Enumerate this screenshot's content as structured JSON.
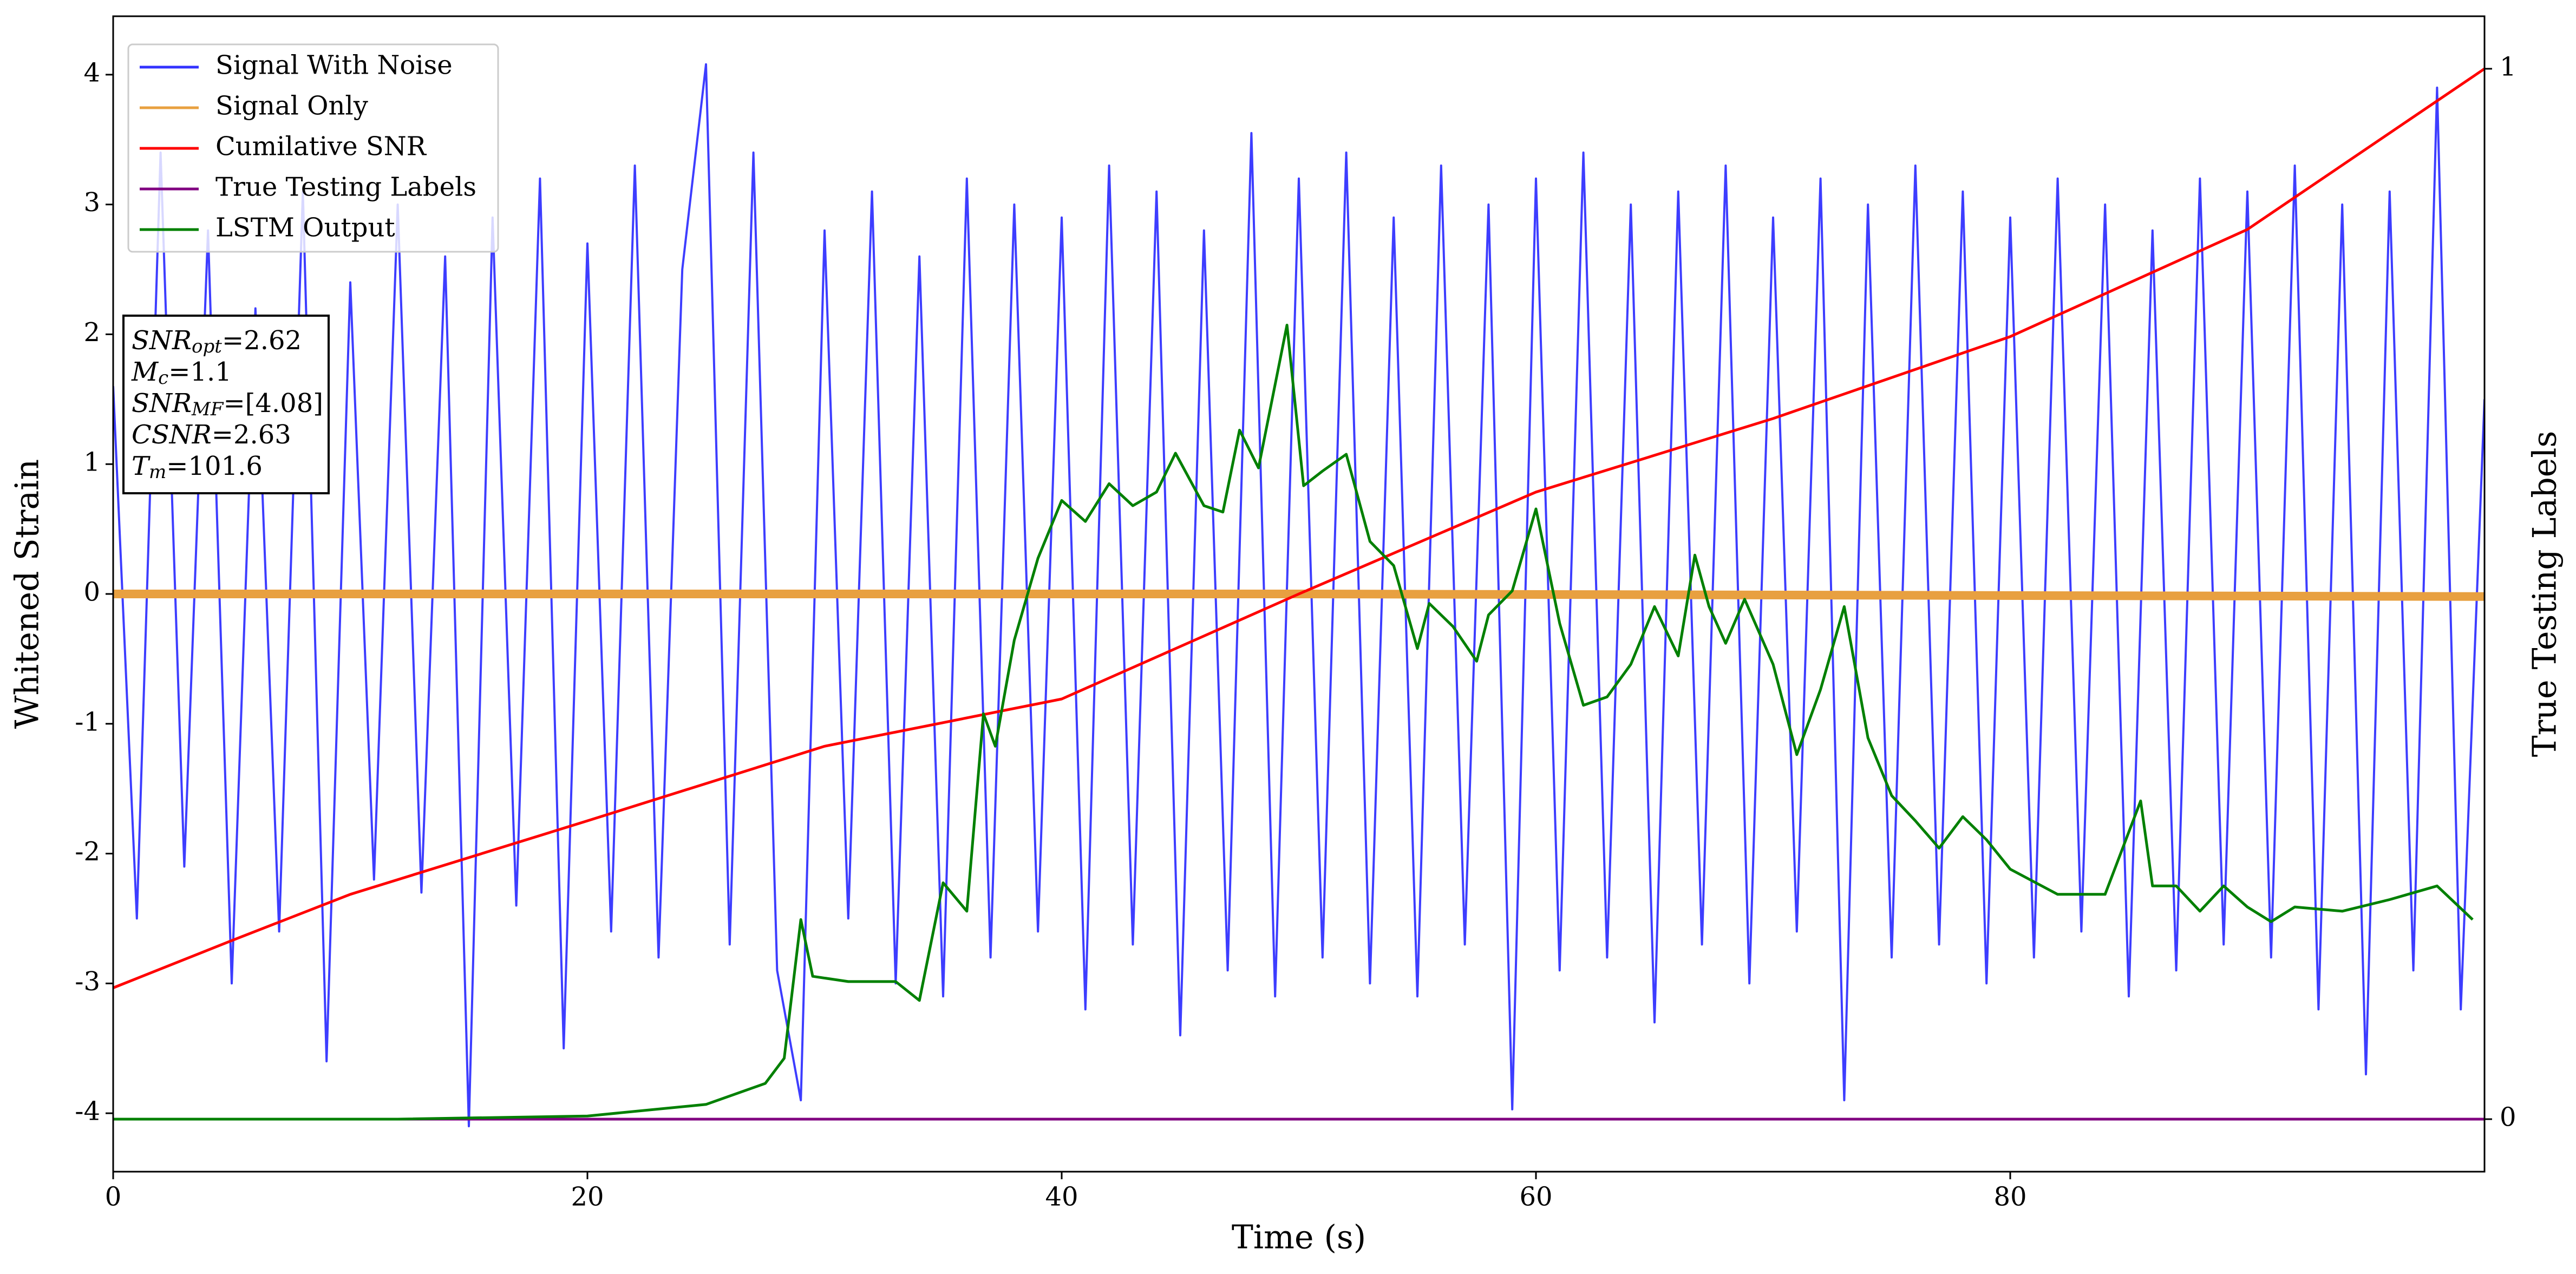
{
  "chart_data": {
    "type": "line",
    "xlabel": "Time (s)",
    "ylabel": "Whitened Strain",
    "y2label": "True Testing Labels",
    "xlim": [
      0,
      100
    ],
    "xticks": [
      0,
      20,
      40,
      60,
      80
    ],
    "ylim": [
      -4.45,
      4.45
    ],
    "yticks": [
      -4,
      -3,
      -2,
      -1,
      0,
      1,
      2,
      3,
      4
    ],
    "y2lim": [
      -0.05,
      1.05
    ],
    "y2ticks": [
      0,
      1
    ],
    "legend": "upper left",
    "series": [
      {
        "name": "Signal With Noise",
        "color": "#3333ff",
        "x": [
          0,
          1,
          2,
          3,
          4,
          5,
          6,
          7,
          8,
          9,
          10,
          11,
          12,
          13,
          14,
          15,
          16,
          17,
          18,
          19,
          20,
          21,
          22,
          23,
          24,
          25,
          26,
          27,
          28,
          29,
          30,
          31,
          32,
          33,
          34,
          35,
          36,
          37,
          38,
          39,
          40,
          41,
          42,
          43,
          44,
          45,
          46,
          47,
          48,
          49,
          50,
          51,
          52,
          53,
          54,
          55,
          56,
          57,
          58,
          59,
          60,
          61,
          62,
          63,
          64,
          65,
          66,
          67,
          68,
          69,
          70,
          71,
          72,
          73,
          74,
          75,
          76,
          77,
          78,
          79,
          80,
          81,
          82,
          83,
          84,
          85,
          86,
          87,
          88,
          89,
          90,
          91,
          92,
          93,
          94,
          95,
          96,
          97,
          98,
          99,
          100
        ],
        "values": [
          1.6,
          -2.5,
          3.4,
          -2.1,
          2.8,
          -3.0,
          2.2,
          -2.6,
          3.1,
          -3.6,
          2.4,
          -2.2,
          3.0,
          -2.3,
          2.6,
          -4.1,
          2.9,
          -2.4,
          3.2,
          -3.5,
          2.7,
          -2.6,
          3.3,
          -2.8,
          2.5,
          4.08,
          -2.7,
          3.4,
          -2.9,
          -3.9,
          2.8,
          -2.5,
          3.1,
          -3.0,
          2.6,
          -3.1,
          3.2,
          -2.8,
          3.0,
          -2.6,
          2.9,
          -3.2,
          3.3,
          -2.7,
          3.1,
          -3.4,
          2.8,
          -2.9,
          3.55,
          -3.1,
          3.2,
          -2.8,
          3.4,
          -3.0,
          2.9,
          -3.1,
          3.3,
          -2.7,
          3.0,
          -3.97,
          3.2,
          -2.9,
          3.4,
          -2.8,
          3.0,
          -3.3,
          3.1,
          -2.7,
          3.3,
          -3.0,
          2.9,
          -2.6,
          3.2,
          -3.9,
          3.0,
          -2.8,
          3.3,
          -2.7,
          3.1,
          -3.0,
          2.9,
          -2.8,
          3.2,
          -2.6,
          3.0,
          -3.1,
          2.8,
          -2.9,
          3.2,
          -2.7,
          3.1,
          -2.8,
          3.3,
          -3.2,
          3.0,
          -3.7,
          3.1,
          -2.9,
          3.9,
          -3.2,
          1.5
        ]
      },
      {
        "name": "Signal Only",
        "color": "#e8a040",
        "x": [
          0,
          50,
          100
        ],
        "values": [
          0,
          0,
          -0.02
        ]
      },
      {
        "name": "Cumilative SNR",
        "color": "#ff0000",
        "axis": "y2",
        "x": [
          0,
          5,
          10,
          20,
          30,
          40,
          50,
          60,
          70,
          80,
          90,
          100
        ],
        "values": [
          0.125,
          0.17,
          0.214,
          0.284,
          0.355,
          0.4,
          0.5,
          0.597,
          0.667,
          0.745,
          0.847,
          1.0
        ]
      },
      {
        "name": "True Testing Labels",
        "color": "#800080",
        "axis": "y2",
        "x": [
          0,
          100
        ],
        "values": [
          0,
          0
        ]
      },
      {
        "name": "LSTM Output",
        "color": "#008000",
        "axis": "y2",
        "x": [
          0,
          12,
          20,
          25,
          27.5,
          28.3,
          29,
          29.5,
          31,
          33,
          34,
          35,
          36,
          36.7,
          37.2,
          38,
          39,
          40,
          41,
          42,
          43,
          44,
          44.8,
          46,
          46.8,
          47.5,
          48.3,
          49.5,
          50.2,
          51,
          52,
          53,
          54,
          55,
          55.5,
          56.5,
          57.5,
          58,
          59,
          60,
          61,
          62,
          63,
          64,
          65,
          66,
          66.7,
          67.3,
          68,
          68.8,
          70,
          71,
          72,
          73,
          74,
          75,
          76,
          77,
          78,
          79,
          80,
          82,
          84,
          85.5,
          86,
          87,
          88,
          89,
          90,
          91,
          92,
          94,
          96,
          98,
          99.5
        ],
        "values": [
          0,
          0,
          0.003,
          0.014,
          0.034,
          0.058,
          0.19,
          0.136,
          0.131,
          0.131,
          0.113,
          0.225,
          0.198,
          0.386,
          0.355,
          0.456,
          0.534,
          0.589,
          0.569,
          0.605,
          0.584,
          0.597,
          0.634,
          0.584,
          0.578,
          0.656,
          0.62,
          0.756,
          0.603,
          0.617,
          0.633,
          0.55,
          0.527,
          0.448,
          0.491,
          0.469,
          0.436,
          0.48,
          0.503,
          0.581,
          0.472,
          0.394,
          0.402,
          0.433,
          0.488,
          0.441,
          0.537,
          0.488,
          0.453,
          0.495,
          0.433,
          0.347,
          0.409,
          0.488,
          0.363,
          0.308,
          0.284,
          0.258,
          0.288,
          0.266,
          0.238,
          0.214,
          0.214,
          0.303,
          0.222,
          0.222,
          0.198,
          0.222,
          0.202,
          0.188,
          0.202,
          0.198,
          0.209,
          0.222,
          0.19
        ]
      }
    ],
    "annotations": [
      {
        "symbol": "SNR",
        "subscript": "opt",
        "text": "=2.62"
      },
      {
        "symbol": "M",
        "subscript": "c",
        "text": "=1.1"
      },
      {
        "symbol": "SNR",
        "subscript": "MF",
        "text": "=[4.08]"
      },
      {
        "symbol": "CSNR",
        "text": "=2.63"
      },
      {
        "symbol": "T",
        "subscript": "m",
        "text": "=101.6"
      }
    ]
  }
}
